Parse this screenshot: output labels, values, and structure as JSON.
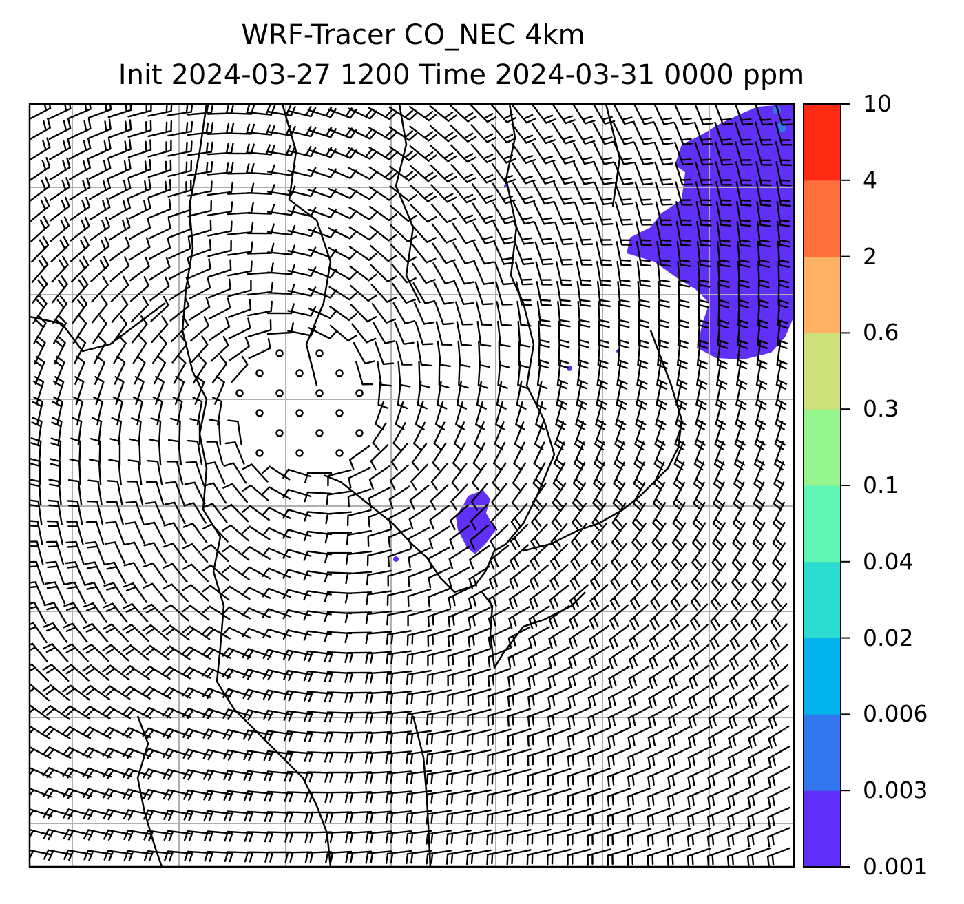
{
  "title_line1": "WRF-Tracer CO_NEC 4km",
  "title_line2": "Init 2024-03-27 1200 Time 2024-03-31 0000 ppm",
  "colorbar": {
    "levels": [
      "0.001",
      "0.003",
      "0.006",
      "0.02",
      "0.04",
      "0.1",
      "0.3",
      "0.6",
      "2",
      "4",
      "10"
    ],
    "colors": [
      "#6030f8",
      "#3277ee",
      "#00b1ea",
      "#2ddcd0",
      "#61f5b4",
      "#96f58e",
      "#cde07b",
      "#ffb163",
      "#ff6f3c",
      "#ff2a13"
    ]
  },
  "map": {
    "variable": "CO tracer concentration with wind barbs",
    "plume_color": "#6030f8",
    "gridline_color": "#b0b0b0"
  }
}
